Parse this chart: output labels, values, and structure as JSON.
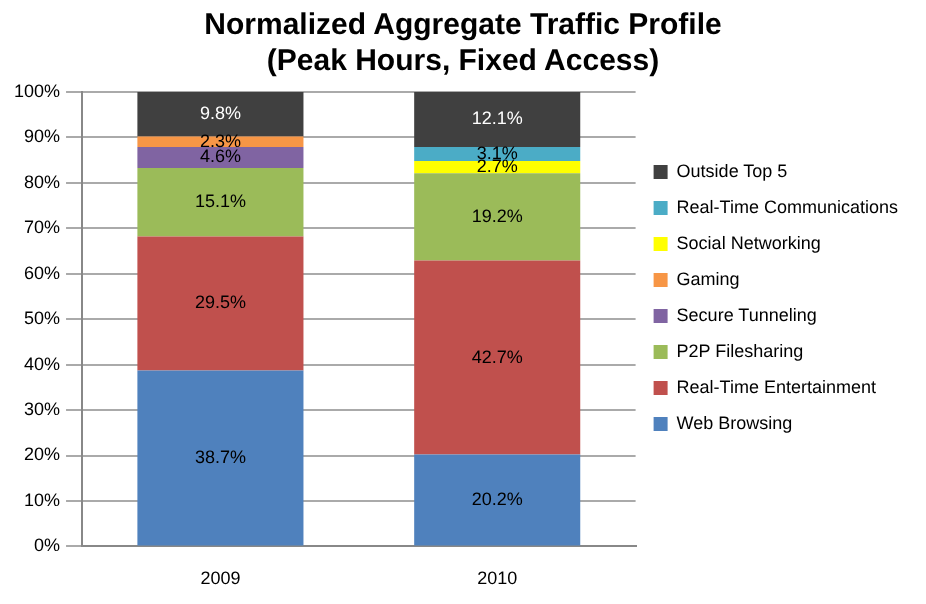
{
  "chart_data": {
    "type": "bar",
    "title": "Normalized Aggregate Traffic Profile (Peak Hours, Fixed Access)",
    "categories": [
      "2009",
      "2010"
    ],
    "stacked": true,
    "ylim": [
      0,
      100
    ],
    "yticks": [
      {
        "value": 0,
        "label": "0%"
      },
      {
        "value": 10,
        "label": "10%"
      },
      {
        "value": 20,
        "label": "20%"
      },
      {
        "value": 30,
        "label": "30%"
      },
      {
        "value": 40,
        "label": "40%"
      },
      {
        "value": 50,
        "label": "50%"
      },
      {
        "value": 60,
        "label": "60%"
      },
      {
        "value": 70,
        "label": "70%"
      },
      {
        "value": 80,
        "label": "80%"
      },
      {
        "value": 90,
        "label": "90%"
      },
      {
        "value": 100,
        "label": "100%"
      }
    ],
    "grid": "y",
    "legend": "right",
    "series": [
      {
        "name": "Web Browsing",
        "color": "#4f81bd",
        "values": [
          38.7,
          20.2
        ],
        "value_labels": [
          "38.7%",
          "20.2%"
        ]
      },
      {
        "name": "Real-Time Entertainment",
        "color": "#c0504d",
        "values": [
          29.5,
          42.7
        ],
        "value_labels": [
          "29.5%",
          "42.7%"
        ]
      },
      {
        "name": "P2P Filesharing",
        "color": "#9bbb59",
        "values": [
          15.1,
          19.2
        ],
        "value_labels": [
          "15.1%",
          "19.2%"
        ]
      },
      {
        "name": "Secure Tunneling",
        "color": "#8064a2",
        "values": [
          4.6,
          null
        ],
        "value_labels": [
          "4.6%",
          null
        ]
      },
      {
        "name": "Gaming",
        "color": "#f79646",
        "values": [
          2.3,
          null
        ],
        "value_labels": [
          "2.3%",
          null
        ]
      },
      {
        "name": "Social Networking",
        "color": "#ffff00",
        "values": [
          null,
          2.7
        ],
        "value_labels": [
          null,
          "2.7%"
        ]
      },
      {
        "name": "Real-Time Communications",
        "color": "#4bacc6",
        "values": [
          null,
          3.1
        ],
        "value_labels": [
          null,
          "3.1%"
        ]
      },
      {
        "name": "Outside Top 5",
        "color": "#404040",
        "values": [
          9.8,
          12.1
        ],
        "value_labels": [
          "9.8%",
          "12.1%"
        ]
      }
    ]
  }
}
